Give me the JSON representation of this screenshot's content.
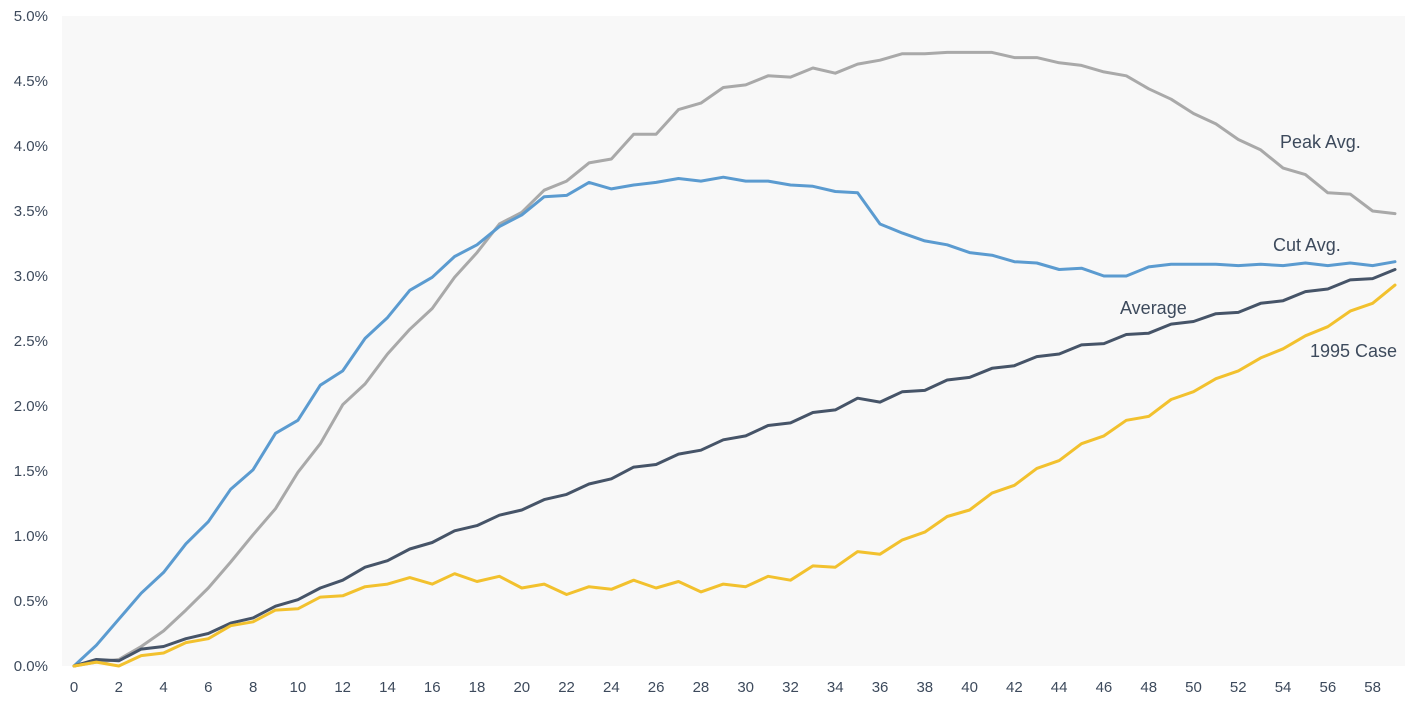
{
  "chart_data": {
    "type": "line",
    "title": "",
    "xlabel": "",
    "ylabel": "",
    "xlim": [
      0,
      59
    ],
    "ylim": [
      0,
      5.0
    ],
    "grid": false,
    "x_ticks": [
      0,
      2,
      4,
      6,
      8,
      10,
      12,
      14,
      16,
      18,
      20,
      22,
      24,
      26,
      28,
      30,
      32,
      34,
      36,
      38,
      40,
      42,
      44,
      46,
      48,
      50,
      52,
      54,
      56,
      58
    ],
    "x_tick_labels": [
      "0",
      "2",
      "4",
      "6",
      "8",
      "10",
      "12",
      "14",
      "16",
      "18",
      "20",
      "22",
      "24",
      "26",
      "28",
      "30",
      "32",
      "34",
      "36",
      "38",
      "40",
      "42",
      "44",
      "46",
      "48",
      "50",
      "52",
      "54",
      "56",
      "58"
    ],
    "y_ticks": [
      0,
      0.5,
      1.0,
      1.5,
      2.0,
      2.5,
      3.0,
      3.5,
      4.0,
      4.5,
      5.0
    ],
    "y_tick_labels": [
      "0.0%",
      "0.5%",
      "1.0%",
      "1.5%",
      "2.0%",
      "2.5%",
      "3.0%",
      "3.5%",
      "4.0%",
      "4.5%",
      "5.0%"
    ],
    "series": [
      {
        "name": "Peak Avg.",
        "color": "#a9a9a9",
        "values": [
          0.0,
          0.03,
          0.05,
          0.15,
          0.27,
          0.43,
          0.6,
          0.8,
          1.01,
          1.21,
          1.49,
          1.71,
          2.01,
          2.17,
          2.4,
          2.59,
          2.75,
          2.99,
          3.18,
          3.4,
          3.49,
          3.66,
          3.73,
          3.87,
          3.9,
          4.09,
          4.09,
          4.28,
          4.33,
          4.45,
          4.47,
          4.54,
          4.53,
          4.6,
          4.56,
          4.63,
          4.66,
          4.71,
          4.71,
          4.72,
          4.72,
          4.72,
          4.68,
          4.68,
          4.64,
          4.62,
          4.57,
          4.54,
          4.44,
          4.36,
          4.25,
          4.17,
          4.05,
          3.97,
          3.83,
          3.78,
          3.64,
          3.63,
          3.5,
          3.48
        ]
      },
      {
        "name": "Cut Avg.",
        "color": "#5b9bd0",
        "values": [
          0.0,
          0.16,
          0.36,
          0.56,
          0.72,
          0.94,
          1.11,
          1.36,
          1.51,
          1.79,
          1.89,
          2.16,
          2.27,
          2.52,
          2.68,
          2.89,
          2.99,
          3.15,
          3.24,
          3.38,
          3.47,
          3.61,
          3.62,
          3.72,
          3.67,
          3.7,
          3.72,
          3.75,
          3.73,
          3.76,
          3.73,
          3.73,
          3.7,
          3.69,
          3.65,
          3.64,
          3.4,
          3.33,
          3.27,
          3.24,
          3.18,
          3.16,
          3.11,
          3.1,
          3.05,
          3.06,
          3.0,
          3.0,
          3.07,
          3.09,
          3.09,
          3.09,
          3.08,
          3.09,
          3.08,
          3.1,
          3.08,
          3.1,
          3.08,
          3.11
        ]
      },
      {
        "name": "Average",
        "color": "#465468",
        "values": [
          0.0,
          0.05,
          0.04,
          0.13,
          0.15,
          0.21,
          0.25,
          0.33,
          0.37,
          0.46,
          0.51,
          0.6,
          0.66,
          0.76,
          0.81,
          0.9,
          0.95,
          1.04,
          1.08,
          1.16,
          1.2,
          1.28,
          1.32,
          1.4,
          1.44,
          1.53,
          1.55,
          1.63,
          1.66,
          1.74,
          1.77,
          1.85,
          1.87,
          1.95,
          1.97,
          2.06,
          2.03,
          2.11,
          2.12,
          2.2,
          2.22,
          2.29,
          2.31,
          2.38,
          2.4,
          2.47,
          2.48,
          2.55,
          2.56,
          2.63,
          2.65,
          2.71,
          2.72,
          2.79,
          2.81,
          2.88,
          2.9,
          2.97,
          2.98,
          3.05
        ]
      },
      {
        "name": "1995 Case",
        "color": "#f2c12e",
        "values": [
          0.0,
          0.03,
          0.0,
          0.08,
          0.1,
          0.18,
          0.21,
          0.31,
          0.34,
          0.43,
          0.44,
          0.53,
          0.54,
          0.61,
          0.63,
          0.68,
          0.63,
          0.71,
          0.65,
          0.69,
          0.6,
          0.63,
          0.55,
          0.61,
          0.59,
          0.66,
          0.6,
          0.65,
          0.57,
          0.63,
          0.61,
          0.69,
          0.66,
          0.77,
          0.76,
          0.88,
          0.86,
          0.97,
          1.03,
          1.15,
          1.2,
          1.33,
          1.39,
          1.52,
          1.58,
          1.71,
          1.77,
          1.89,
          1.92,
          2.05,
          2.11,
          2.21,
          2.27,
          2.37,
          2.44,
          2.54,
          2.61,
          2.73,
          2.79,
          2.93
        ]
      }
    ],
    "annotations": [
      {
        "text": "Peak Avg.",
        "series": "Peak Avg."
      },
      {
        "text": "Cut Avg.",
        "series": "Cut Avg."
      },
      {
        "text": "Average",
        "series": "Average"
      },
      {
        "text": "1995 Case",
        "series": "1995 Case"
      }
    ]
  }
}
